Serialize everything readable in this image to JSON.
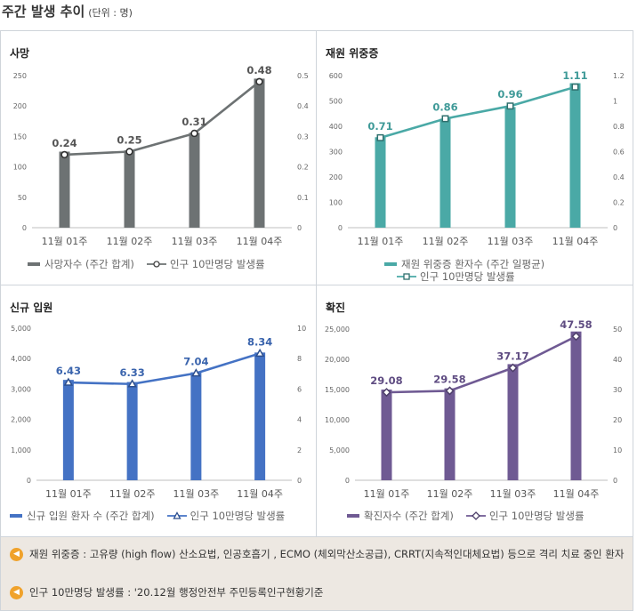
{
  "page": {
    "title": "주간 발생 추이",
    "unit": "(단위 : 명)"
  },
  "chart_data": [
    {
      "type": "bar",
      "title": "사망",
      "categories": [
        "11월 01주",
        "11월 02주",
        "11월 03주",
        "11월 04주"
      ],
      "series": [
        {
          "name": "사망자수 (주간 합계)",
          "type": "bar",
          "axis": "left",
          "values": [
            125,
            127,
            156,
            245
          ],
          "color": "#6d7273"
        },
        {
          "name": "인구 10만명당 발생률",
          "type": "line",
          "axis": "right",
          "values": [
            0.24,
            0.25,
            0.31,
            0.48
          ],
          "labels": [
            "0.24",
            "0.25",
            "0.31",
            "0.48"
          ],
          "color": "#6d7273"
        }
      ],
      "ylim_left": [
        0,
        250
      ],
      "yticks_left": [
        "0",
        "50",
        "100",
        "150",
        "200",
        "250"
      ],
      "ylim_right": [
        0,
        0.5
      ],
      "yticks_right": [
        "0",
        "0.1",
        "0.2",
        "0.3",
        "0.4",
        "0.5"
      ],
      "grid": false,
      "legend": "bottom",
      "marker": "circle",
      "label_color": "#555555"
    },
    {
      "type": "bar",
      "title": "재원 위중증",
      "categories": [
        "11월 01주",
        "11월 02주",
        "11월 03주",
        "11월 04주"
      ],
      "series": [
        {
          "name": "재원 위중증 환자수 (주간 일평균)",
          "type": "bar",
          "axis": "left",
          "values": [
            357,
            430,
            476,
            570
          ],
          "color": "#4aa9a6"
        },
        {
          "name": "인구 10만명당 발생률",
          "type": "line",
          "axis": "right",
          "values": [
            0.71,
            0.86,
            0.96,
            1.11
          ],
          "labels": [
            "0.71",
            "0.86",
            "0.96",
            "1.11"
          ],
          "color": "#4aa9a6"
        }
      ],
      "ylim_left": [
        0,
        600
      ],
      "yticks_left": [
        "0",
        "100",
        "200",
        "300",
        "400",
        "500",
        "600"
      ],
      "ylim_right": [
        0,
        1.2
      ],
      "yticks_right": [
        "0",
        "0.2",
        "0.4",
        "0.6",
        "0.8",
        "1",
        "1.2"
      ],
      "grid": false,
      "legend": "bottom",
      "marker": "square",
      "label_color": "#3f9a98"
    },
    {
      "type": "bar",
      "title": "신규 입원",
      "categories": [
        "11월 01주",
        "11월 02주",
        "11월 03주",
        "11월 04주"
      ],
      "series": [
        {
          "name": "신규 입원 환자 수 (주간 합계)",
          "type": "bar",
          "axis": "left",
          "values": [
            3300,
            3230,
            3550,
            4200
          ],
          "color": "#4472c4"
        },
        {
          "name": "인구 10만명당 발생률",
          "type": "line",
          "axis": "right",
          "values": [
            6.43,
            6.33,
            7.04,
            8.34
          ],
          "labels": [
            "6.43",
            "6.33",
            "7.04",
            "8.34"
          ],
          "color": "#4472c4"
        }
      ],
      "ylim_left": [
        0,
        5000
      ],
      "yticks_left": [
        "0",
        "1,000",
        "2,000",
        "3,000",
        "4,000",
        "5,000"
      ],
      "ylim_right": [
        0,
        10
      ],
      "yticks_right": [
        "0",
        "2",
        "4",
        "6",
        "8",
        "10"
      ],
      "grid": false,
      "legend": "bottom",
      "marker": "triangle",
      "label_color": "#3a64ad"
    },
    {
      "type": "bar",
      "title": "확진",
      "categories": [
        "11월 01주",
        "11월 02주",
        "11월 03주",
        "11월 04주"
      ],
      "series": [
        {
          "name": "확진자수 (주간 합계)",
          "type": "bar",
          "axis": "left",
          "values": [
            15000,
            15200,
            19200,
            24600
          ],
          "color": "#6f5a93"
        },
        {
          "name": "인구 10만명당 발생률",
          "type": "line",
          "axis": "right",
          "values": [
            29.08,
            29.58,
            37.17,
            47.58
          ],
          "labels": [
            "29.08",
            "29.58",
            "37.17",
            "47.58"
          ],
          "color": "#6f5a93"
        }
      ],
      "ylim_left": [
        0,
        25000
      ],
      "yticks_left": [
        "0",
        "5,000",
        "10,000",
        "15,000",
        "20,000",
        "25,000"
      ],
      "ylim_right": [
        0,
        50
      ],
      "yticks_right": [
        "0",
        "10",
        "20",
        "30",
        "40",
        "50"
      ],
      "grid": false,
      "legend": "bottom",
      "marker": "diamond",
      "label_color": "#5f4c82"
    }
  ],
  "notes": [
    {
      "icon": "speaker-icon",
      "text": "재원 위중증 : 고유량 (high flow) 산소요법, 인공호흡기 , ECMO (체외막산소공급), CRRT(지속적인대체요법) 등으로 격리 치료 중인 환자"
    },
    {
      "icon": "speaker-icon",
      "text": "인구 10만명당 발생률 : '20.12월 행정안전부 주민등록인구현황기준"
    }
  ]
}
